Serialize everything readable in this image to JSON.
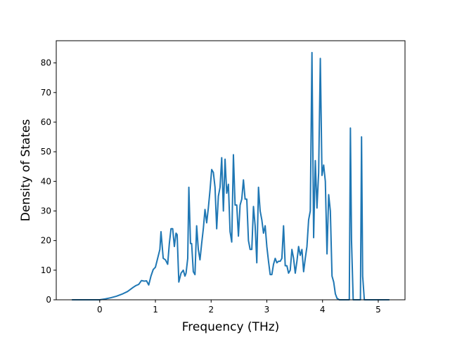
{
  "chart_data": {
    "type": "line",
    "title": "",
    "xlabel": "Frequency (THz)",
    "ylabel": "Density of States",
    "xlim": [
      -0.78,
      5.48
    ],
    "ylim": [
      0,
      87.5
    ],
    "xticks": [
      0,
      1,
      2,
      3,
      4,
      5
    ],
    "yticks": [
      0,
      10,
      20,
      30,
      40,
      50,
      60,
      70,
      80
    ],
    "grid": false,
    "legend": "none",
    "series": [
      {
        "color": "#1f77b4",
        "x": [
          -0.5,
          0.0,
          0.1,
          0.2,
          0.3,
          0.4,
          0.5,
          0.6,
          0.65,
          0.7,
          0.75,
          0.8,
          0.84,
          0.88,
          0.92,
          0.96,
          1.0,
          1.04,
          1.08,
          1.1,
          1.14,
          1.18,
          1.22,
          1.25,
          1.28,
          1.31,
          1.34,
          1.37,
          1.39,
          1.42,
          1.46,
          1.5,
          1.53,
          1.55,
          1.58,
          1.6,
          1.63,
          1.65,
          1.68,
          1.71,
          1.74,
          1.77,
          1.8,
          1.83,
          1.86,
          1.89,
          1.92,
          1.95,
          1.98,
          2.01,
          2.04,
          2.07,
          2.1,
          2.13,
          2.16,
          2.19,
          2.22,
          2.25,
          2.28,
          2.31,
          2.34,
          2.37,
          2.4,
          2.43,
          2.46,
          2.49,
          2.52,
          2.55,
          2.58,
          2.61,
          2.64,
          2.67,
          2.7,
          2.73,
          2.76,
          2.79,
          2.82,
          2.85,
          2.88,
          2.91,
          2.94,
          2.97,
          3.0,
          3.03,
          3.06,
          3.09,
          3.12,
          3.15,
          3.18,
          3.21,
          3.24,
          3.27,
          3.3,
          3.33,
          3.36,
          3.39,
          3.42,
          3.45,
          3.48,
          3.51,
          3.54,
          3.57,
          3.6,
          3.63,
          3.66,
          3.69,
          3.72,
          3.75,
          3.78,
          3.81,
          3.84,
          3.87,
          3.9,
          3.93,
          3.96,
          3.99,
          4.02,
          4.05,
          4.08,
          4.11,
          4.14,
          4.17,
          4.2,
          4.23,
          4.26,
          4.3,
          4.35,
          4.4,
          4.45,
          4.48,
          4.5,
          4.52,
          4.55,
          4.6,
          4.65,
          4.68,
          4.7,
          4.72,
          4.75,
          4.8,
          5.0,
          5.2
        ],
        "y": [
          0,
          0,
          0.3,
          0.7,
          1.2,
          1.9,
          2.8,
          4.2,
          4.8,
          5.2,
          6.5,
          6.3,
          6.4,
          5.0,
          8.0,
          10.2,
          11.0,
          14.0,
          17.0,
          23.0,
          14.0,
          13.5,
          12.0,
          19.0,
          24.0,
          24.0,
          18.0,
          22.5,
          22.0,
          6.0,
          9.0,
          10.0,
          8.0,
          9.0,
          14.0,
          38.0,
          19.0,
          19.0,
          9.5,
          8.5,
          25.0,
          17.0,
          13.5,
          19.0,
          24.0,
          30.5,
          26.0,
          31.0,
          37.0,
          44.0,
          43.0,
          38.0,
          24.0,
          35.0,
          38.0,
          48.0,
          30.0,
          47.5,
          36.0,
          39.0,
          23.0,
          19.5,
          49.0,
          32.0,
          32.0,
          21.5,
          32.0,
          34.0,
          40.5,
          34.0,
          34.0,
          20.0,
          17.0,
          17.0,
          31.5,
          25.0,
          12.5,
          38.0,
          30.0,
          27.0,
          22.5,
          25.0,
          18.0,
          13.0,
          8.5,
          8.5,
          12.0,
          14.0,
          12.5,
          13.0,
          13.0,
          14.0,
          25.0,
          11.5,
          11.5,
          9.0,
          10.0,
          17.0,
          14.0,
          9.0,
          13.0,
          18.0,
          15.0,
          17.0,
          9.5,
          14.0,
          18.0,
          27.0,
          30.0,
          83.5,
          21.0,
          47.0,
          31.0,
          43.0,
          81.5,
          42.0,
          45.5,
          40.0,
          15.5,
          35.5,
          30.0,
          8.0,
          6.0,
          2.0,
          0.5,
          0,
          0,
          0,
          0,
          0,
          58.0,
          20.0,
          0,
          0,
          0,
          0,
          55.0,
          8.0,
          0,
          0,
          0,
          0
        ]
      }
    ]
  }
}
